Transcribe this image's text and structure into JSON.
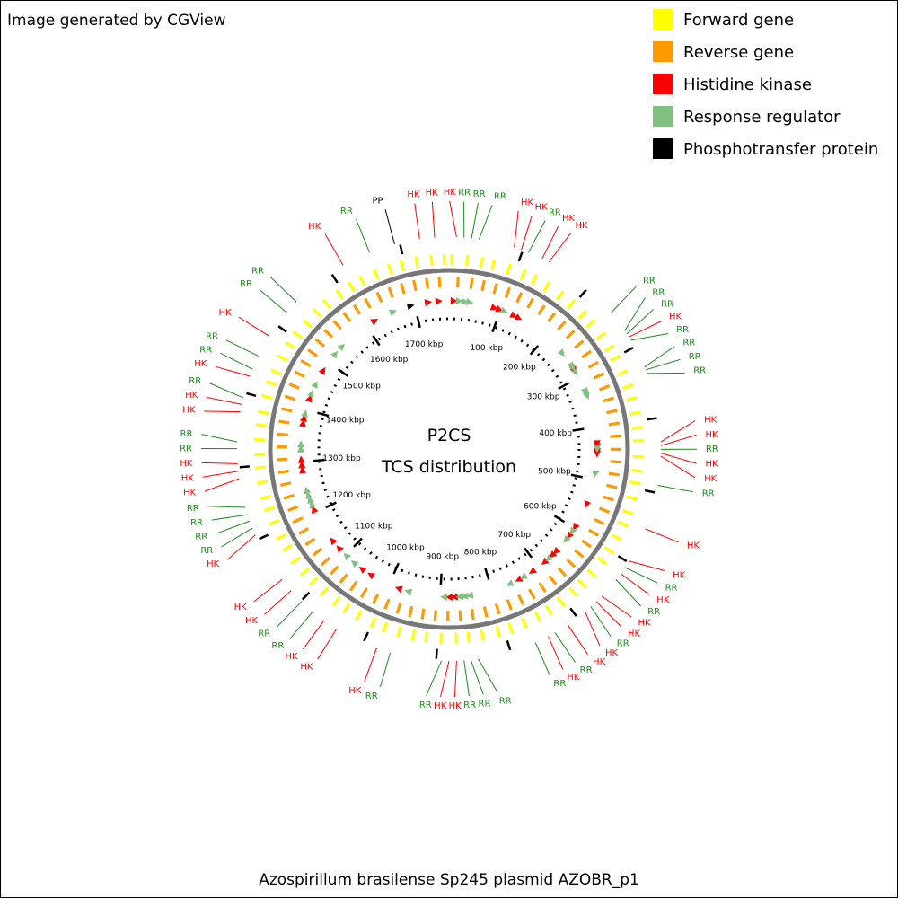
{
  "header": "Image generated by CGView",
  "chart_data": {
    "type": "circular-map",
    "title": "Azospirillum brasilense Sp245 plasmid AZOBR_p1",
    "center_labels": [
      "P2CS",
      "TCS distribution"
    ],
    "xlim": [
      0,
      1766
    ],
    "xticks": [
      {
        "value": 100,
        "label": "100 kbp"
      },
      {
        "value": 200,
        "label": "200 kbp"
      },
      {
        "value": 300,
        "label": "300 kbp"
      },
      {
        "value": 400,
        "label": "400 kbp"
      },
      {
        "value": 500,
        "label": "500 kbp"
      },
      {
        "value": 600,
        "label": "600 kbp"
      },
      {
        "value": 700,
        "label": "700 kbp"
      },
      {
        "value": 800,
        "label": "800 kbp"
      },
      {
        "value": 900,
        "label": "900 kbp"
      },
      {
        "value": 1000,
        "label": "1000 kbp"
      },
      {
        "value": 1100,
        "label": "1100 kbp"
      },
      {
        "value": 1200,
        "label": "1200 kbp"
      },
      {
        "value": 1300,
        "label": "1300 kbp"
      },
      {
        "value": 1400,
        "label": "1400 kbp"
      },
      {
        "value": 1500,
        "label": "1500 kbp"
      },
      {
        "value": 1600,
        "label": "1600 kbp"
      },
      {
        "value": 1700,
        "label": "1700 kbp"
      }
    ],
    "series": [
      {
        "name": "Forward gene",
        "color": "#ffff00",
        "track": "forward",
        "values": [
          4,
          27,
          49,
          66,
          90,
          113,
          131,
          152,
          176,
          197,
          220,
          238,
          262,
          284,
          301,
          325,
          347,
          366,
          388,
          410,
          429,
          453,
          474,
          492,
          515,
          537,
          556,
          578,
          600,
          619,
          643,
          664,
          682,
          705,
          727,
          746,
          768,
          790,
          809,
          833,
          854,
          872,
          895,
          917,
          936,
          958,
          980,
          999,
          1023,
          1044,
          1062,
          1085,
          1107,
          1126,
          1148,
          1170,
          1189,
          1213,
          1234,
          1252,
          1275,
          1297,
          1316,
          1338,
          1360,
          1379,
          1403,
          1424,
          1442,
          1465,
          1487,
          1506,
          1528,
          1550,
          1569,
          1593,
          1614,
          1632,
          1655,
          1677,
          1696,
          1718,
          1740,
          1759
        ]
      },
      {
        "name": "Reverse gene",
        "color": "#ff9900",
        "track": "reverse",
        "values": [
          15,
          38,
          58,
          79,
          101,
          122,
          143,
          165,
          186,
          208,
          229,
          251,
          272,
          293,
          314,
          336,
          357,
          378,
          399,
          420,
          442,
          463,
          484,
          505,
          526,
          547,
          568,
          589,
          611,
          632,
          653,
          674,
          695,
          716,
          737,
          758,
          779,
          800,
          821,
          843,
          864,
          885,
          906,
          927,
          948,
          969,
          990,
          1011,
          1033,
          1054,
          1075,
          1096,
          1117,
          1138,
          1159,
          1180,
          1201,
          1222,
          1243,
          1265,
          1286,
          1307,
          1328,
          1349,
          1370,
          1391,
          1412,
          1433,
          1455,
          1476,
          1497,
          1518,
          1539,
          1560,
          1581,
          1602,
          1623,
          1645,
          1666,
          1687,
          1708,
          1729,
          1750
        ]
      },
      {
        "name": "Histidine kinase",
        "label": "HK",
        "color": "#ff0000",
        "label_color": "#ff0000",
        "track": "feature",
        "values": [
          10,
          88,
          98,
          128,
          138,
          285,
          432,
          437,
          447,
          451,
          550,
          598,
          618,
          657,
          667,
          687,
          716,
          746,
          873,
          883,
          981,
          1040,
          1060,
          1119,
          1138,
          1207,
          1285,
          1295,
          1305,
          1374,
          1384,
          1423,
          1482,
          1619,
          1727,
          1747
        ]
      },
      {
        "name": "Response regulator",
        "label": "RR",
        "color": "#80c080",
        "label_color": "#1a8a1a",
        "track": "feature",
        "values": [
          20,
          30,
          40,
          108,
          245,
          275,
          280,
          290,
          330,
          334,
          339,
          442,
          490,
          608,
          628,
          677,
          736,
          765,
          844,
          854,
          863,
          893,
          962,
          1079,
          1099,
          1217,
          1227,
          1236,
          1246,
          1325,
          1334,
          1393,
          1433,
          1452,
          1521,
          1540,
          1658
        ]
      },
      {
        "name": "Phosphotransfer protein",
        "label": "PP",
        "color": "#000000",
        "label_color": "#000000",
        "track": "feature",
        "values": [
          1693
        ]
      }
    ]
  }
}
